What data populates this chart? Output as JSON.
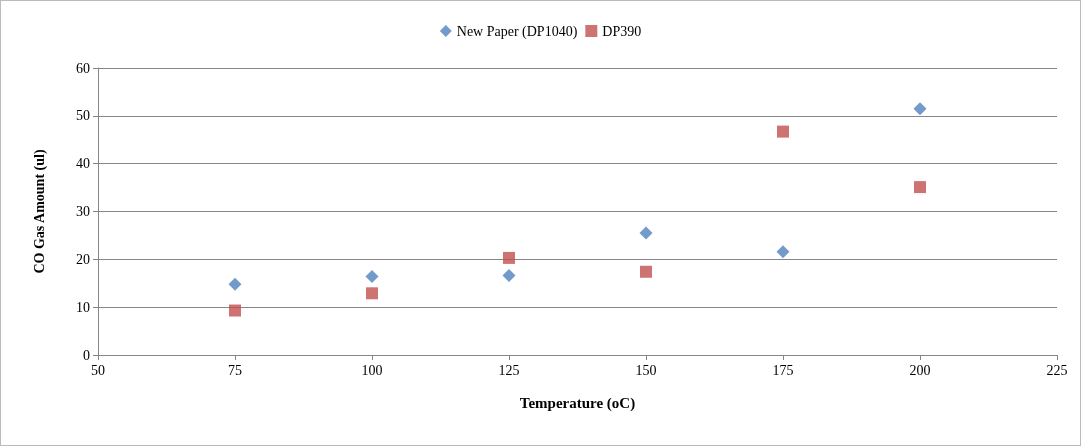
{
  "chart_data": {
    "type": "scatter",
    "xlabel": "Temperature (oC)",
    "ylabel": "CO Gas Amount (ul)",
    "x": [
      75,
      100,
      125,
      150,
      175,
      200
    ],
    "series": [
      {
        "name": "New Paper (DP1040)",
        "color": "#4f81bd",
        "marker": "diamond",
        "values": [
          14.8,
          16.4,
          16.6,
          25.5,
          21.6,
          51.5
        ]
      },
      {
        "name": "DP390",
        "color": "#c0504d",
        "marker": "square",
        "values": [
          9.3,
          12.9,
          20.3,
          17.4,
          46.7,
          35.1
        ]
      }
    ],
    "xlim": [
      50,
      225
    ],
    "xticks": [
      50,
      75,
      100,
      125,
      150,
      175,
      200,
      225
    ],
    "ylim": [
      0,
      60
    ],
    "yticks": [
      0,
      10,
      20,
      30,
      40,
      50,
      60
    ],
    "grid": "y",
    "legend": "top"
  }
}
